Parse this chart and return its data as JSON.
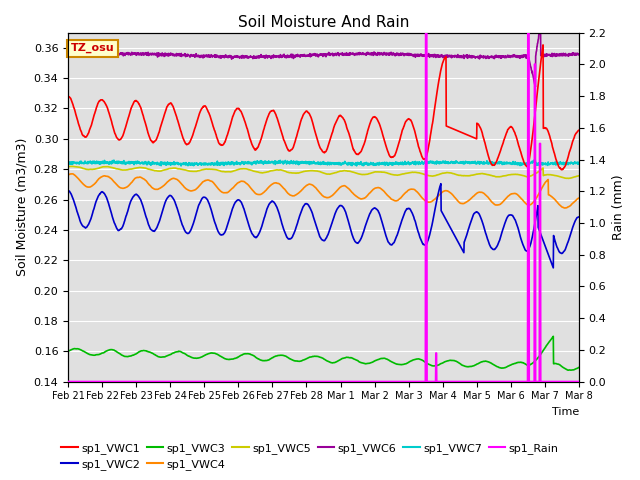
{
  "title": "Soil Moisture And Rain",
  "xlabel": "Time",
  "ylabel_left": "Soil Moisture (m3/m3)",
  "ylabel_right": "Rain (mm)",
  "ylim_left": [
    0.14,
    0.37
  ],
  "ylim_right": [
    0.0,
    2.2
  ],
  "yticks_left": [
    0.14,
    0.16,
    0.18,
    0.2,
    0.22,
    0.24,
    0.26,
    0.28,
    0.3,
    0.32,
    0.34,
    0.36
  ],
  "yticks_right": [
    0.0,
    0.2,
    0.4,
    0.6,
    0.8,
    1.0,
    1.2,
    1.4,
    1.6,
    1.8,
    2.0,
    2.2
  ],
  "colors": {
    "VWC1": "#ff0000",
    "VWC2": "#0000cc",
    "VWC3": "#00bb00",
    "VWC4": "#ff8800",
    "VWC5": "#cccc00",
    "VWC6": "#990099",
    "VWC7": "#00cccc",
    "Rain": "#ff00ff"
  },
  "tz_label": "TZ_osu",
  "n_points": 2000,
  "days": 15
}
